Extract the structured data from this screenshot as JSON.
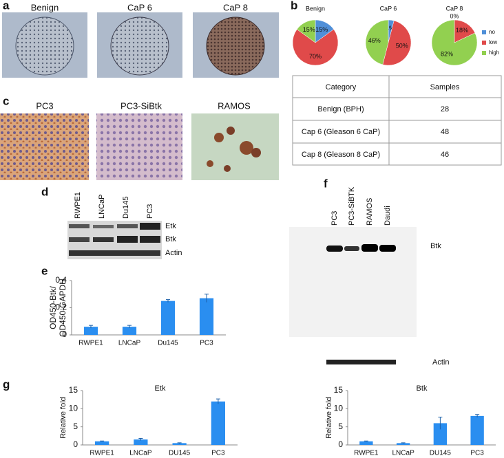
{
  "panel_labels": [
    "a",
    "b",
    "c",
    "d",
    "e",
    "f",
    "g"
  ],
  "panel_a": {
    "images": [
      "Benign",
      "CaP 6",
      "CaP 8"
    ]
  },
  "panel_c": {
    "images": [
      "PC3",
      "PC3-SiBtk",
      "RAMOS"
    ]
  },
  "table": {
    "header": [
      "Category",
      "Samples"
    ],
    "rows": [
      [
        "Benign (BPH)",
        28
      ],
      [
        "Cap 6 (Gleason 6 CaP)",
        48
      ],
      [
        "Cap 8 (Gleason 8 CaP)",
        46
      ]
    ]
  },
  "blot_d": {
    "lanes": [
      "RWPE1",
      "LNCaP",
      "Du145",
      "PC3"
    ],
    "bands": [
      "Etk",
      "Btk",
      "Actin"
    ]
  },
  "blot_f": {
    "lanes": [
      "PC3",
      "PC3-SiBTK",
      "RAMOS",
      "Daudi"
    ],
    "bands": [
      "Btk",
      "Actin"
    ]
  },
  "chart_data": [
    {
      "type": "pie",
      "title": "Benign",
      "values": [
        15,
        70,
        15
      ],
      "value_labels": [
        "15%",
        "70%",
        "15%"
      ],
      "colors": [
        "#4f8fd8",
        "#e04a4a",
        "#92d050"
      ]
    },
    {
      "type": "pie",
      "title": "CaP 6",
      "values": [
        4,
        50,
        46
      ],
      "value_labels": [
        "4%",
        "50%",
        "46%"
      ],
      "colors": [
        "#4f8fd8",
        "#e04a4a",
        "#92d050"
      ]
    },
    {
      "type": "pie",
      "title": "CaP 8",
      "values": [
        0,
        18,
        82
      ],
      "value_labels": [
        "0%",
        "18%",
        "82%"
      ],
      "colors": [
        "#4f8fd8",
        "#e04a4a",
        "#92d050"
      ],
      "categories": [
        "no",
        "low",
        "high"
      ],
      "legend": "right"
    },
    {
      "type": "bar",
      "categories": [
        "RWPE1",
        "LNCaP",
        "Du145",
        "PC3"
      ],
      "values": [
        0.06,
        0.06,
        0.25,
        0.27
      ],
      "errors": [
        0.01,
        0.01,
        0.01,
        0.03
      ],
      "ylabel": [
        "OD450-Btk/",
        "OD450-GAPDH"
      ],
      "ylim": [
        0,
        0.4
      ],
      "yticks": [
        0,
        0.2,
        0.4
      ],
      "color": "#2a8ef0"
    },
    {
      "type": "bar",
      "title": "Etk",
      "categories": [
        "RWPE1",
        "LNCaP",
        "DU145",
        "PC3"
      ],
      "values": [
        1,
        1.5,
        0.5,
        12
      ],
      "errors": [
        0.1,
        0.3,
        0.1,
        0.7
      ],
      "ylabel": "Relative fold",
      "ylim": [
        0,
        15
      ],
      "yticks": [
        0,
        5,
        10,
        15
      ],
      "color": "#2a8ef0"
    },
    {
      "type": "bar",
      "title": "Btk",
      "categories": [
        "RWPE1",
        "LNCaP",
        "DU145",
        "PC3"
      ],
      "values": [
        1,
        0.5,
        6,
        8
      ],
      "errors": [
        0.1,
        0.1,
        1.7,
        0.4
      ],
      "ylabel": "Relative fold",
      "ylim": [
        0,
        15
      ],
      "yticks": [
        0,
        5,
        10,
        15
      ],
      "color": "#2a8ef0"
    }
  ]
}
